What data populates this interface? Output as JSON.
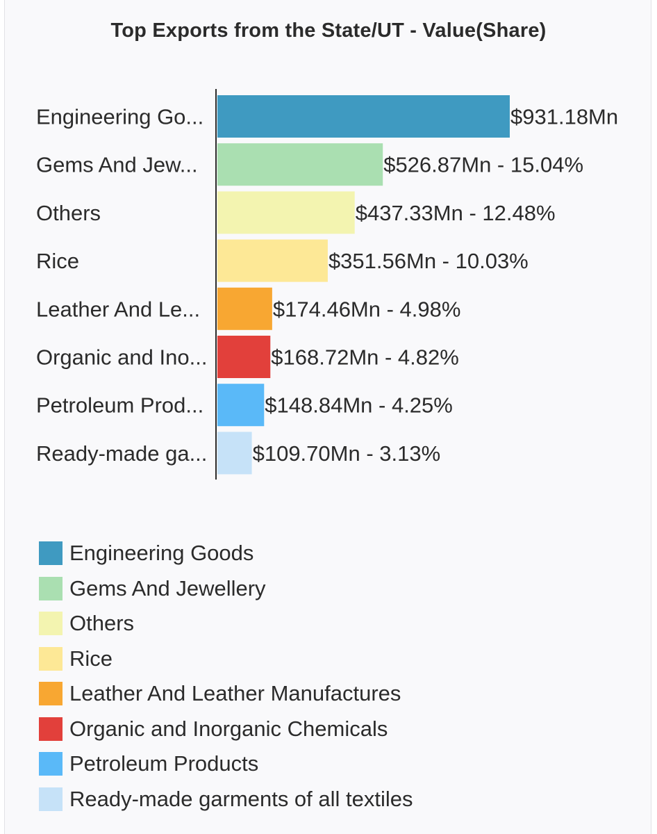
{
  "chart_data": {
    "type": "bar",
    "orientation": "horizontal",
    "title": "Top Exports from the State/UT - Value(Share)",
    "categories": [
      "Engineering Goods",
      "Gems And Jewellery",
      "Others",
      "Rice",
      "Leather And Leather Manufactures",
      "Organic and Inorganic Chemicals",
      "Petroleum Products",
      "Ready-made garments of all textiles"
    ],
    "tick_labels": [
      "Engineering Go...",
      "Gems And Jew...",
      "Others",
      "Rice",
      "Leather And Le...",
      "Organic and Ino...",
      "Petroleum Prod...",
      "Ready-made ga..."
    ],
    "values": [
      931.18,
      526.87,
      437.33,
      351.56,
      174.46,
      168.72,
      148.84,
      109.7
    ],
    "data_labels": [
      "$931.18Mn",
      "$526.87Mn - 15.04%",
      "$437.33Mn - 12.48%",
      "$351.56Mn - 10.03%",
      "$174.46Mn - 4.98%",
      "$168.72Mn - 4.82%",
      "$148.84Mn - 4.25%",
      "$109.70Mn - 3.13%"
    ],
    "colors": [
      "#3f9ac1",
      "#aadfb1",
      "#f3f4b0",
      "#fde896",
      "#f8a732",
      "#e2403b",
      "#5ab9f8",
      "#c6e2f8"
    ],
    "xlim": [
      0,
      931.18
    ],
    "grid": false,
    "legend_position": "bottom"
  }
}
